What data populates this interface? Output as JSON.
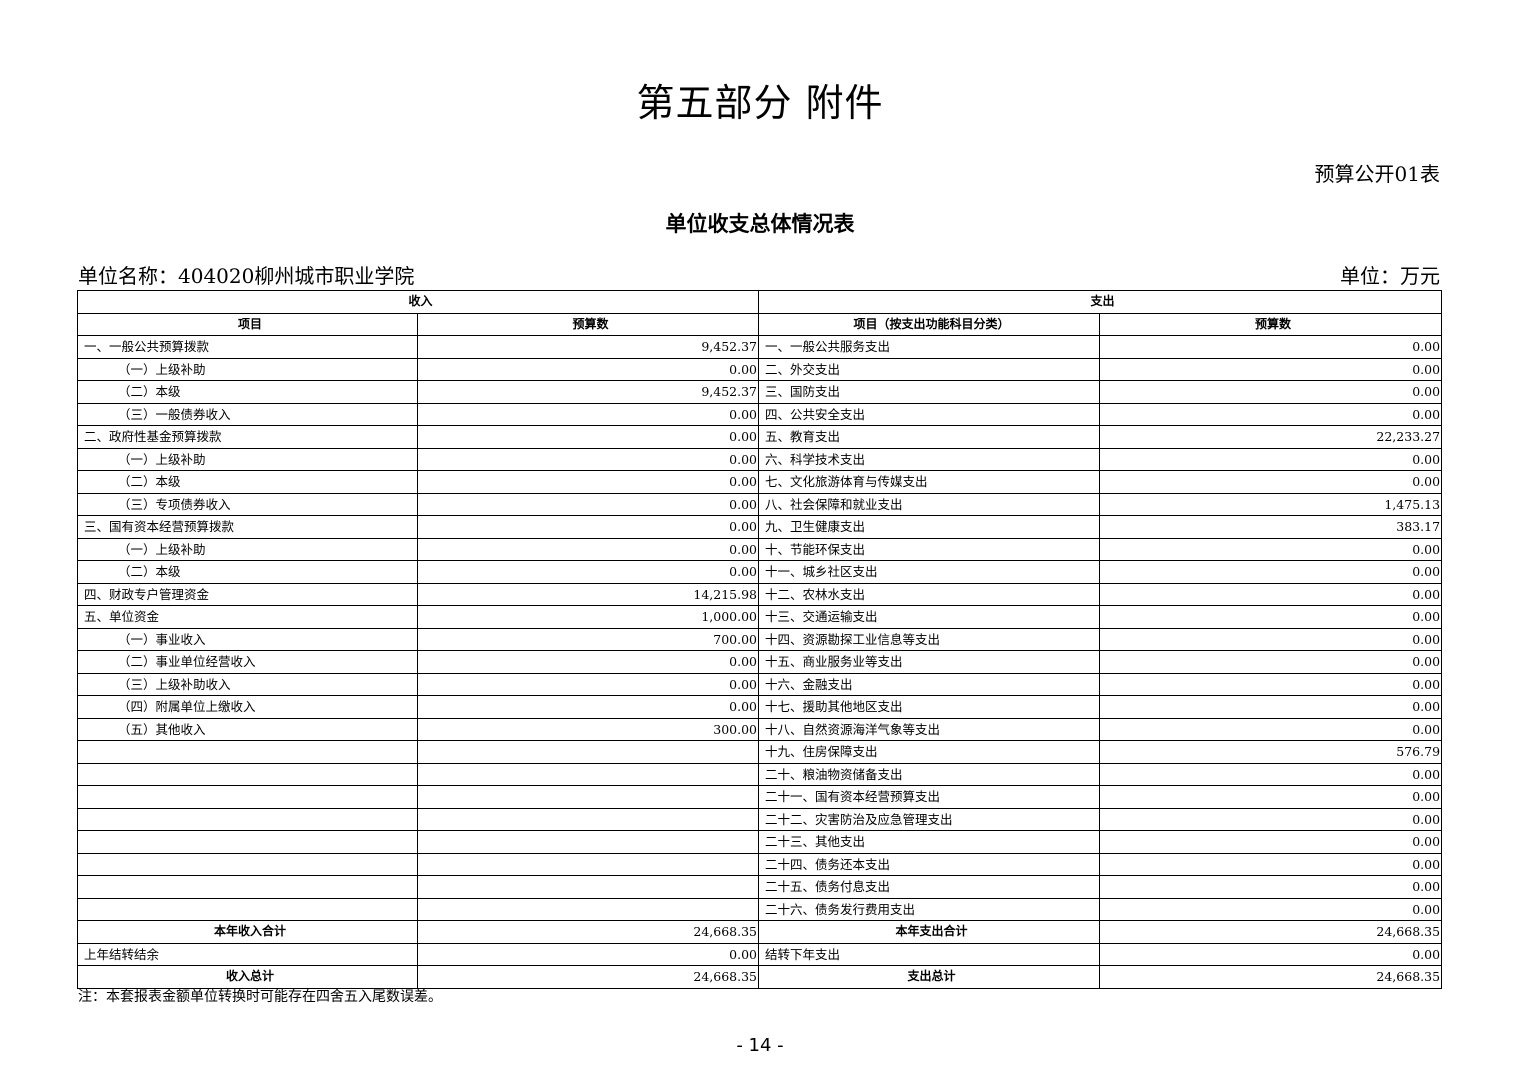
{
  "title": "第五部分  附件",
  "table_code": "预算公开01表",
  "subtitle": "单位收支总体情况表",
  "unit_name": "单位名称：404020柳州城市职业学院",
  "unit": "单位：万元",
  "headers": {
    "income": "收入",
    "expense": "支出",
    "income_item": "项目",
    "income_amount": "预算数",
    "expense_item": "项目（按支出功能科目分类）",
    "expense_amount": "预算数"
  },
  "rows": [
    {
      "in_item": "一、一般公共预算拨款",
      "in_indent": false,
      "in_amt": "9,452.37",
      "ex_item": "一、一般公共服务支出",
      "ex_amt": "0.00"
    },
    {
      "in_item": "（一）上级补助",
      "in_indent": true,
      "in_amt": "0.00",
      "ex_item": "二、外交支出",
      "ex_amt": "0.00"
    },
    {
      "in_item": "（二）本级",
      "in_indent": true,
      "in_amt": "9,452.37",
      "ex_item": "三、国防支出",
      "ex_amt": "0.00"
    },
    {
      "in_item": "（三）一般债券收入",
      "in_indent": true,
      "in_amt": "0.00",
      "ex_item": "四、公共安全支出",
      "ex_amt": "0.00"
    },
    {
      "in_item": "二、政府性基金预算拨款",
      "in_indent": false,
      "in_amt": "0.00",
      "ex_item": "五、教育支出",
      "ex_amt": "22,233.27"
    },
    {
      "in_item": "（一）上级补助",
      "in_indent": true,
      "in_amt": "0.00",
      "ex_item": "六、科学技术支出",
      "ex_amt": "0.00"
    },
    {
      "in_item": "（二）本级",
      "in_indent": true,
      "in_amt": "0.00",
      "ex_item": "七、文化旅游体育与传媒支出",
      "ex_amt": "0.00"
    },
    {
      "in_item": "（三）专项债券收入",
      "in_indent": true,
      "in_amt": "0.00",
      "ex_item": "八、社会保障和就业支出",
      "ex_amt": "1,475.13"
    },
    {
      "in_item": "三、国有资本经营预算拨款",
      "in_indent": false,
      "in_amt": "0.00",
      "ex_item": "九、卫生健康支出",
      "ex_amt": "383.17"
    },
    {
      "in_item": "（一）上级补助",
      "in_indent": true,
      "in_amt": "0.00",
      "ex_item": "十、节能环保支出",
      "ex_amt": "0.00"
    },
    {
      "in_item": "（二）本级",
      "in_indent": true,
      "in_amt": "0.00",
      "ex_item": "十一、城乡社区支出",
      "ex_amt": "0.00"
    },
    {
      "in_item": "四、财政专户管理资金",
      "in_indent": false,
      "in_amt": "14,215.98",
      "ex_item": "十二、农林水支出",
      "ex_amt": "0.00"
    },
    {
      "in_item": "五、单位资金",
      "in_indent": false,
      "in_amt": "1,000.00",
      "ex_item": "十三、交通运输支出",
      "ex_amt": "0.00"
    },
    {
      "in_item": "（一）事业收入",
      "in_indent": true,
      "in_amt": "700.00",
      "ex_item": "十四、资源勘探工业信息等支出",
      "ex_amt": "0.00"
    },
    {
      "in_item": "（二）事业单位经营收入",
      "in_indent": true,
      "in_amt": "0.00",
      "ex_item": "十五、商业服务业等支出",
      "ex_amt": "0.00"
    },
    {
      "in_item": "（三）上级补助收入",
      "in_indent": true,
      "in_amt": "0.00",
      "ex_item": "十六、金融支出",
      "ex_amt": "0.00"
    },
    {
      "in_item": "（四）附属单位上缴收入",
      "in_indent": true,
      "in_amt": "0.00",
      "ex_item": "十七、援助其他地区支出",
      "ex_amt": "0.00"
    },
    {
      "in_item": "（五）其他收入",
      "in_indent": true,
      "in_amt": "300.00",
      "ex_item": "十八、自然资源海洋气象等支出",
      "ex_amt": "0.00"
    },
    {
      "in_item": "",
      "in_indent": false,
      "in_amt": "",
      "ex_item": "十九、住房保障支出",
      "ex_amt": "576.79"
    },
    {
      "in_item": "",
      "in_indent": false,
      "in_amt": "",
      "ex_item": "二十、粮油物资储备支出",
      "ex_amt": "0.00"
    },
    {
      "in_item": "",
      "in_indent": false,
      "in_amt": "",
      "ex_item": "二十一、国有资本经营预算支出",
      "ex_amt": "0.00"
    },
    {
      "in_item": "",
      "in_indent": false,
      "in_amt": "",
      "ex_item": "二十二、灾害防治及应急管理支出",
      "ex_amt": "0.00"
    },
    {
      "in_item": "",
      "in_indent": false,
      "in_amt": "",
      "ex_item": "二十三、其他支出",
      "ex_amt": "0.00"
    },
    {
      "in_item": "",
      "in_indent": false,
      "in_amt": "",
      "ex_item": "二十四、债务还本支出",
      "ex_amt": "0.00"
    },
    {
      "in_item": "",
      "in_indent": false,
      "in_amt": "",
      "ex_item": "二十五、债务付息支出",
      "ex_amt": "0.00"
    },
    {
      "in_item": "",
      "in_indent": false,
      "in_amt": "",
      "ex_item": "二十六、债务发行费用支出",
      "ex_amt": "0.00"
    },
    {
      "in_item": "本年收入合计",
      "in_bold": true,
      "in_amt": "24,668.35",
      "ex_item": "本年支出合计",
      "ex_bold": true,
      "ex_amt": "24,668.35"
    },
    {
      "in_item": "上年结转结余",
      "in_indent": false,
      "in_amt": "0.00",
      "ex_item": "结转下年支出",
      "ex_amt": "0.00"
    },
    {
      "in_item": "收入总计",
      "in_bold": true,
      "in_amt": "24,668.35",
      "ex_item": "支出总计",
      "ex_bold": true,
      "ex_amt": "24,668.35"
    }
  ],
  "note": "注：本套报表金额单位转换时可能存在四舍五入尾数误差。",
  "page_number": "- 14 -"
}
